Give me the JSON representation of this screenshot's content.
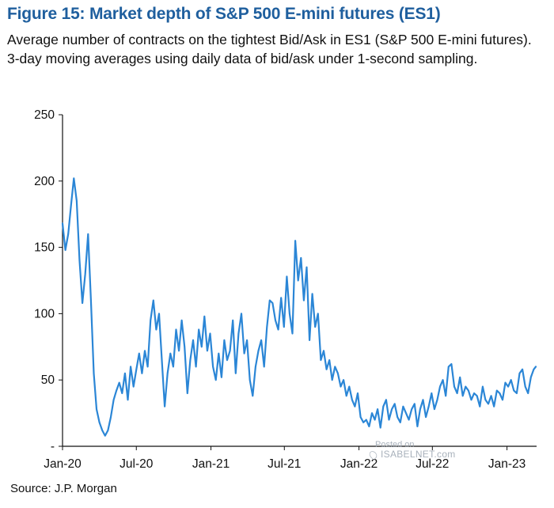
{
  "title": "Figure 15: Market depth of S&P 500 E-mini futures (ES1)",
  "subtitle": "Average number of contracts on the tightest Bid/Ask in ES1 (S&P 500 E-mini futures). 3-day moving averages using daily data of bid/ask under 1-second sampling.",
  "source": "Source: J.P. Morgan",
  "watermark": {
    "line1": "Posted on",
    "line2": "ISABELNET.com"
  },
  "chart_data": {
    "type": "line",
    "title": "Figure 15: Market depth of S&P 500 E-mini futures (ES1)",
    "xlabel": "",
    "ylabel": "",
    "ylim": [
      0,
      250
    ],
    "yticks": [
      0,
      50,
      100,
      150,
      200,
      250
    ],
    "ytick_labels": [
      "-",
      "50",
      "100",
      "150",
      "200",
      "250"
    ],
    "xticks": [
      "Jan-20",
      "Jul-20",
      "Jan-21",
      "Jul-21",
      "Jan-22",
      "Jul-22",
      "Jan-23"
    ],
    "xlim": [
      "2020-01-01",
      "2023-03-15"
    ],
    "grid": false,
    "legend": "none",
    "line_color": "#2b86d6",
    "series": [
      {
        "x": [
          "2020-01-01",
          "2020-01-08",
          "2020-01-15",
          "2020-01-22",
          "2020-01-29",
          "2020-02-05",
          "2020-02-12",
          "2020-02-19",
          "2020-02-26",
          "2020-03-04",
          "2020-03-11",
          "2020-03-18",
          "2020-03-25",
          "2020-04-01",
          "2020-04-08",
          "2020-04-15",
          "2020-04-22",
          "2020-04-29",
          "2020-05-06",
          "2020-05-13",
          "2020-05-20",
          "2020-05-27",
          "2020-06-03",
          "2020-06-10",
          "2020-06-17",
          "2020-06-24",
          "2020-07-01",
          "2020-07-08",
          "2020-07-15",
          "2020-07-22",
          "2020-07-29",
          "2020-08-05",
          "2020-08-12",
          "2020-08-19",
          "2020-08-26",
          "2020-09-02",
          "2020-09-09",
          "2020-09-16",
          "2020-09-23",
          "2020-09-30",
          "2020-10-07",
          "2020-10-14",
          "2020-10-21",
          "2020-10-28",
          "2020-11-04",
          "2020-11-11",
          "2020-11-18",
          "2020-11-25",
          "2020-12-02",
          "2020-12-09",
          "2020-12-16",
          "2020-12-23",
          "2020-12-30",
          "2021-01-06",
          "2021-01-13",
          "2021-01-20",
          "2021-01-27",
          "2021-02-03",
          "2021-02-10",
          "2021-02-17",
          "2021-02-24",
          "2021-03-03",
          "2021-03-10",
          "2021-03-17",
          "2021-03-24",
          "2021-03-31",
          "2021-04-07",
          "2021-04-14",
          "2021-04-21",
          "2021-04-28",
          "2021-05-05",
          "2021-05-12",
          "2021-05-19",
          "2021-05-26",
          "2021-06-02",
          "2021-06-09",
          "2021-06-16",
          "2021-06-23",
          "2021-06-30",
          "2021-07-07",
          "2021-07-14",
          "2021-07-21",
          "2021-07-28",
          "2021-08-04",
          "2021-08-11",
          "2021-08-18",
          "2021-08-25",
          "2021-09-01",
          "2021-09-08",
          "2021-09-15",
          "2021-09-22",
          "2021-09-29",
          "2021-10-06",
          "2021-10-13",
          "2021-10-20",
          "2021-10-27",
          "2021-11-03",
          "2021-11-10",
          "2021-11-17",
          "2021-11-24",
          "2021-12-01",
          "2021-12-08",
          "2021-12-15",
          "2021-12-22",
          "2021-12-29",
          "2022-01-05",
          "2022-01-12",
          "2022-01-19",
          "2022-01-26",
          "2022-02-02",
          "2022-02-09",
          "2022-02-16",
          "2022-02-23",
          "2022-03-02",
          "2022-03-09",
          "2022-03-16",
          "2022-03-23",
          "2022-03-30",
          "2022-04-06",
          "2022-04-13",
          "2022-04-20",
          "2022-04-27",
          "2022-05-04",
          "2022-05-11",
          "2022-05-18",
          "2022-05-25",
          "2022-06-01",
          "2022-06-08",
          "2022-06-15",
          "2022-06-22",
          "2022-06-29",
          "2022-07-06",
          "2022-07-13",
          "2022-07-20",
          "2022-07-27",
          "2022-08-03",
          "2022-08-10",
          "2022-08-17",
          "2022-08-24",
          "2022-08-31",
          "2022-09-07",
          "2022-09-14",
          "2022-09-21",
          "2022-09-28",
          "2022-10-05",
          "2022-10-12",
          "2022-10-19",
          "2022-10-26",
          "2022-11-02",
          "2022-11-09",
          "2022-11-16",
          "2022-11-23",
          "2022-11-30",
          "2022-12-07",
          "2022-12-14",
          "2022-12-21",
          "2022-12-28",
          "2023-01-04",
          "2023-01-11",
          "2023-01-18",
          "2023-01-25",
          "2023-02-01",
          "2023-02-08",
          "2023-02-15",
          "2023-02-22",
          "2023-03-01",
          "2023-03-08",
          "2023-03-13"
        ],
        "values": [
          168,
          148,
          160,
          182,
          202,
          185,
          140,
          108,
          130,
          160,
          110,
          55,
          28,
          18,
          12,
          8,
          12,
          22,
          35,
          42,
          48,
          40,
          55,
          35,
          60,
          45,
          58,
          70,
          55,
          72,
          60,
          95,
          110,
          88,
          100,
          65,
          30,
          55,
          70,
          60,
          88,
          72,
          95,
          75,
          40,
          65,
          80,
          60,
          88,
          75,
          98,
          72,
          85,
          60,
          50,
          70,
          52,
          80,
          65,
          72,
          95,
          55,
          85,
          100,
          70,
          80,
          50,
          38,
          60,
          72,
          80,
          60,
          90,
          110,
          108,
          95,
          88,
          112,
          90,
          128,
          100,
          85,
          155,
          125,
          142,
          110,
          135,
          80,
          115,
          90,
          100,
          65,
          72,
          58,
          65,
          50,
          60,
          55,
          45,
          50,
          38,
          45,
          35,
          30,
          40,
          22,
          18,
          20,
          15,
          25,
          20,
          28,
          14,
          30,
          35,
          20,
          28,
          32,
          22,
          18,
          30,
          25,
          20,
          28,
          32,
          15,
          28,
          35,
          22,
          30,
          40,
          28,
          35,
          45,
          50,
          38,
          60,
          62,
          45,
          40,
          52,
          38,
          45,
          42,
          35,
          40,
          38,
          30,
          45,
          35,
          32,
          38,
          30,
          42,
          40,
          35,
          48,
          45,
          50,
          42,
          40,
          55,
          58,
          45,
          40,
          52,
          58,
          60
        ]
      }
    ]
  }
}
